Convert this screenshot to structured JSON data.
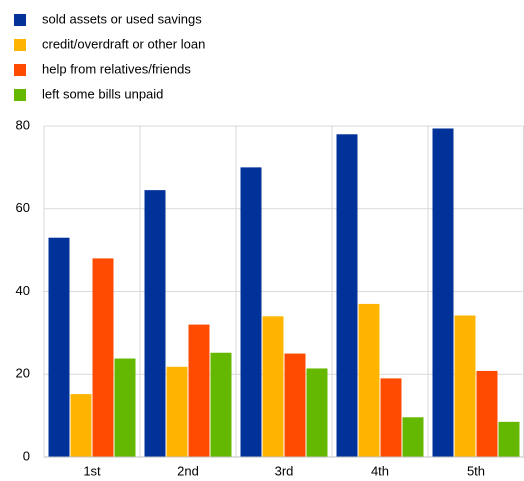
{
  "chart_data": {
    "type": "bar",
    "categories": [
      "1st",
      "2nd",
      "3rd",
      "4th",
      "5th"
    ],
    "series": [
      {
        "name": "sold assets or used savings",
        "color": "#003299",
        "values": [
          53,
          64.5,
          70,
          78,
          79.4
        ]
      },
      {
        "name": "credit/overdraft or other loan",
        "color": "#ffb400",
        "values": [
          15.2,
          21.8,
          34,
          37,
          34.2
        ]
      },
      {
        "name": "help from relatives/friends",
        "color": "#ff4b00",
        "values": [
          48,
          32,
          25,
          19,
          20.8
        ]
      },
      {
        "name": "left some bills unpaid",
        "color": "#65b800",
        "values": [
          23.8,
          25.2,
          21.4,
          9.6,
          8.5
        ]
      }
    ],
    "ylim": [
      0,
      80
    ],
    "yticks": [
      0,
      20,
      40,
      60,
      80
    ],
    "grid": true
  }
}
